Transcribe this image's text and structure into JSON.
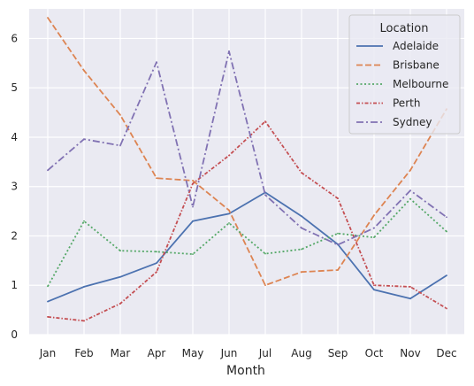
{
  "chart_data": {
    "type": "line",
    "xlabel": "Month",
    "ylabel": "",
    "categories": [
      "Jan",
      "Feb",
      "Mar",
      "Apr",
      "May",
      "Jun",
      "Jul",
      "Aug",
      "Sep",
      "Oct",
      "Nov",
      "Dec"
    ],
    "ylim": [
      0,
      6.6
    ],
    "yticks": [
      0,
      1,
      2,
      3,
      4,
      5,
      6
    ],
    "grid": true,
    "background": "#eaeaf2",
    "legend": {
      "title": "Location",
      "placement": "top-right"
    },
    "series": [
      {
        "name": "Adelaide",
        "color": "#4c72b0",
        "dash": "solid",
        "values": [
          0.67,
          0.97,
          1.17,
          1.45,
          2.3,
          2.45,
          2.88,
          2.4,
          1.83,
          0.91,
          0.73,
          1.2
        ]
      },
      {
        "name": "Brisbane",
        "color": "#dd8452",
        "dash": "dashed",
        "values": [
          6.42,
          5.35,
          4.45,
          3.17,
          3.12,
          2.52,
          1.0,
          1.27,
          1.31,
          2.42,
          3.33,
          4.57
        ]
      },
      {
        "name": "Melbourne",
        "color": "#55a868",
        "dash": "dotted",
        "values": [
          0.98,
          2.3,
          1.7,
          1.68,
          1.63,
          2.26,
          1.64,
          1.73,
          2.05,
          1.97,
          2.75,
          2.09
        ]
      },
      {
        "name": "Perth",
        "color": "#c44e52",
        "dash": "dashdot-fine",
        "values": [
          0.36,
          0.28,
          0.63,
          1.27,
          3.06,
          3.63,
          4.32,
          3.28,
          2.76,
          1.0,
          0.97,
          0.53
        ]
      },
      {
        "name": "Sydney",
        "color": "#8172b3",
        "dash": "dashdot",
        "values": [
          3.33,
          3.96,
          3.83,
          5.52,
          2.59,
          5.74,
          2.83,
          2.16,
          1.82,
          2.16,
          2.92,
          2.38
        ]
      }
    ]
  }
}
